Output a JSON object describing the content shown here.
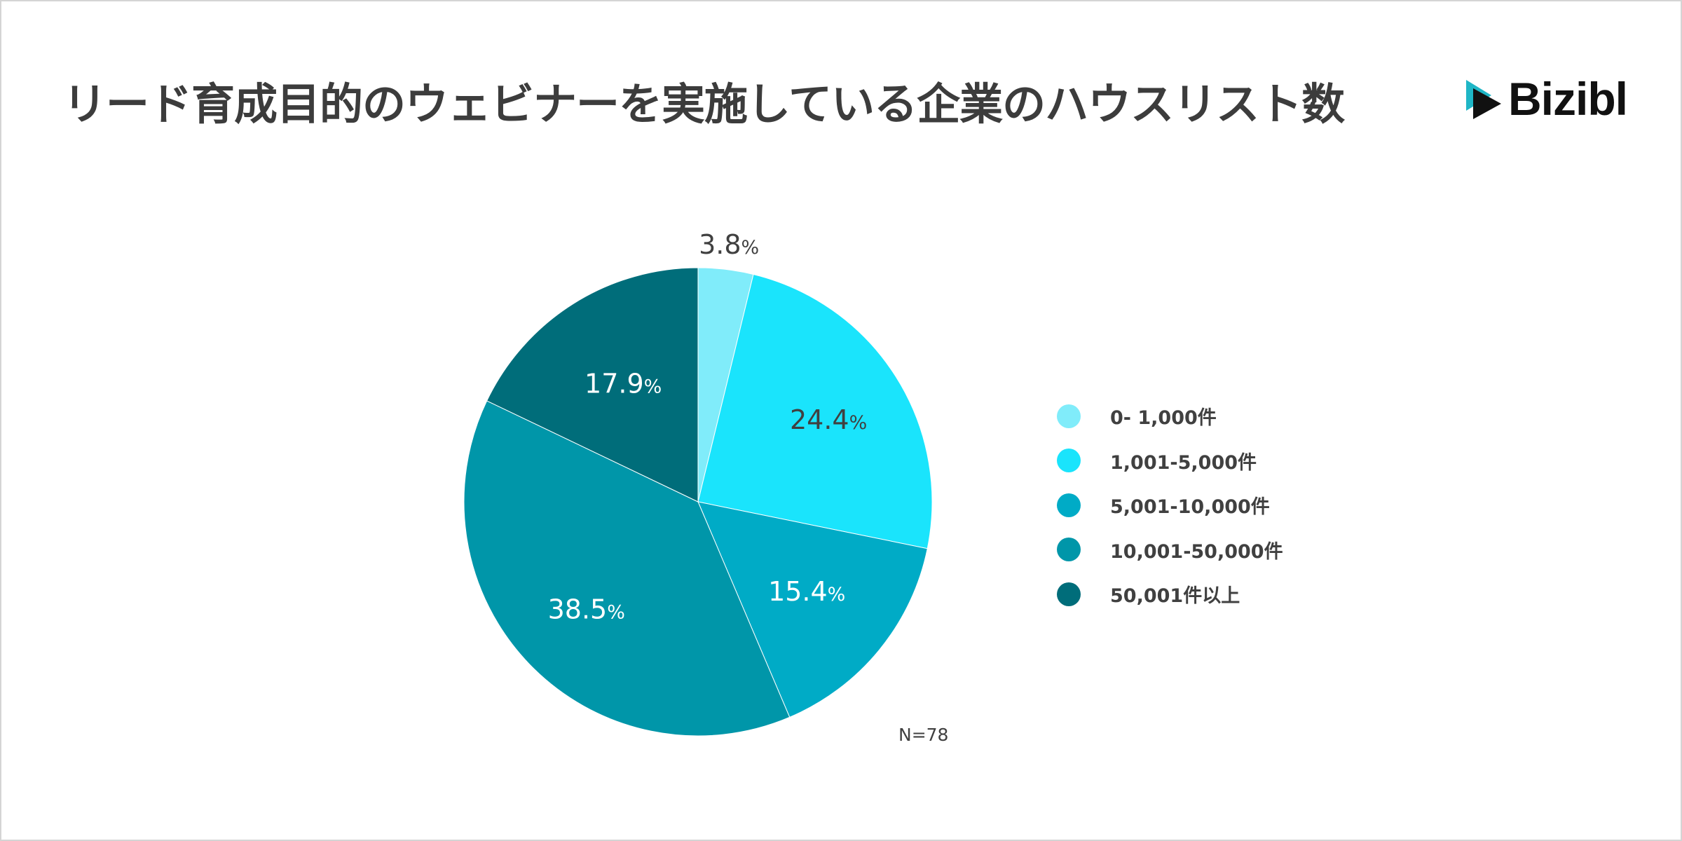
{
  "title": "リード育成目的のウェビナーを実施している企業のハウスリスト数",
  "logo": {
    "text": "Bizibl",
    "colors": {
      "teal": "#1fb6c6",
      "dark": "#111111"
    }
  },
  "note": "N=78",
  "chart_data": {
    "type": "pie",
    "categories": [
      "0- 1,000件",
      "1,001-5,000件",
      "5,001-10,000件",
      "10,001-50,000件",
      "50,001件以上"
    ],
    "values": [
      3.8,
      24.4,
      15.4,
      38.5,
      17.9
    ],
    "labels": [
      "3.8",
      "24.4",
      "15.4",
      "38.5",
      "17.9"
    ],
    "unit": "%",
    "colors": [
      "#80ecfa",
      "#1ae4fc",
      "#00abc6",
      "#0096a9",
      "#006d7a"
    ],
    "label_colors": [
      "#404040",
      "#404040",
      "#ffffff",
      "#ffffff",
      "#ffffff"
    ],
    "start_angle_deg": 0,
    "direction": "clockwise",
    "legend_position": "right"
  }
}
